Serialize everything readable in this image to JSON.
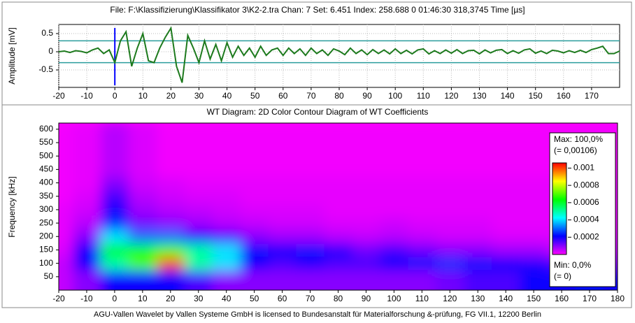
{
  "header": "File: F:\\Klassifizierung\\Klassifikator 3\\K2-2.tra   Chan: 7   Set: 6.451   Index: 258.688    0   01:46:30 318,3745   Time [µs]",
  "footer": "AGU-Vallen Wavelet by Vallen Systeme GmbH is licensed to Bundesanstalt für Materialforschung &-prüfung, FG VII.1, 12200 Berlin",
  "chart_data": [
    {
      "type": "line",
      "y_label": "Amplitude [mV]",
      "color": "#1d7a1d",
      "x": [
        -20,
        -18,
        -16,
        -14,
        -12,
        -10,
        -8,
        -6,
        -4,
        -2,
        0,
        2,
        4,
        6,
        8,
        10,
        12,
        14,
        16,
        18,
        20,
        22,
        24,
        26,
        28,
        30,
        32,
        34,
        36,
        38,
        40,
        42,
        44,
        46,
        48,
        50,
        52,
        54,
        56,
        58,
        60,
        62,
        64,
        66,
        68,
        70,
        72,
        74,
        76,
        78,
        80,
        82,
        84,
        86,
        88,
        90,
        92,
        94,
        96,
        98,
        100,
        102,
        104,
        106,
        108,
        110,
        112,
        114,
        116,
        118,
        120,
        122,
        124,
        126,
        128,
        130,
        132,
        134,
        136,
        138,
        140,
        142,
        144,
        146,
        148,
        150,
        152,
        154,
        156,
        158,
        160,
        162,
        164,
        166,
        168,
        170,
        172,
        174,
        176,
        178,
        180
      ],
      "values": [
        0,
        0.02,
        -0.02,
        0.03,
        0.01,
        -0.03,
        0.05,
        0.1,
        -0.05,
        0.05,
        -0.3,
        0.3,
        0.55,
        -0.4,
        0.1,
        0.5,
        -0.25,
        -0.3,
        0.1,
        0.4,
        0.65,
        -0.4,
        -0.85,
        0.45,
        0.1,
        -0.3,
        0.3,
        -0.2,
        0.2,
        -0.25,
        0.25,
        -0.15,
        0.15,
        -0.1,
        0.1,
        -0.15,
        0.15,
        -0.1,
        0.05,
        0.1,
        -0.1,
        0.1,
        -0.05,
        0.08,
        -0.1,
        0.1,
        -0.05,
        0.05,
        -0.1,
        0.08,
        0.02,
        -0.08,
        0.1,
        -0.05,
        0.05,
        -0.08,
        0.06,
        -0.05,
        0.05,
        -0.06,
        0.08,
        -0.05,
        0.04,
        -0.06,
        0.05,
        0.08,
        -0.06,
        0.03,
        -0.05,
        0.05,
        -0.04,
        0.06,
        -0.05,
        0.03,
        0.04,
        -0.06,
        0.05,
        -0.03,
        0.04,
        0.06,
        -0.05,
        0.03,
        -0.04,
        0.05,
        0.08,
        -0.04,
        0.02,
        -0.05,
        0.04,
        0.02,
        -0.03,
        0.03,
        -0.02,
        0.04,
        -0.02,
        0.06,
        0.1,
        0.15,
        -0.05,
        -0.05,
        0.02
      ],
      "thresholds": [
        0.3,
        -0.3
      ],
      "threshold_color": "#2a9d9d",
      "trigger_x": 0,
      "trigger_color": "#0000ff",
      "xlim": [
        -20,
        180
      ],
      "xticks": [
        -20,
        -10,
        0,
        10,
        20,
        30,
        40,
        50,
        60,
        70,
        80,
        90,
        100,
        110,
        120,
        130,
        140,
        150,
        160,
        170
      ],
      "ylim": [
        -0.98,
        0.75
      ],
      "yticks": [
        -0.5,
        0,
        0.5
      ],
      "grid": true
    },
    {
      "type": "heatmap",
      "title": "WT Diagram: 2D Color Contour Diagram of WT Coefficients",
      "y_label": "Frequency [kHz]",
      "x": [
        -20,
        -10,
        0,
        10,
        20,
        30,
        40,
        50,
        60,
        70,
        80,
        90,
        100,
        110,
        120,
        130,
        140,
        150,
        160,
        170,
        180
      ],
      "y": [
        50,
        100,
        150,
        200,
        250,
        300,
        350,
        400,
        450,
        500,
        550,
        600
      ],
      "z": [
        [
          5e-05,
          0.0001,
          0.0002,
          0.0002,
          0.0002,
          0.00015,
          0.0001,
          0.0001,
          0.0001,
          0.0001,
          0.0001,
          0.0001,
          0.0001,
          0.0001,
          0.00012,
          0.00015,
          0.00015,
          0.0002,
          0.0002,
          0.00022,
          0.0002
        ],
        [
          5e-05,
          0.0002,
          0.0005,
          0.0007,
          0.001,
          0.0005,
          0.0004,
          0.0002,
          0.00015,
          0.00018,
          0.00015,
          0.00015,
          0.0002,
          0.00022,
          0.00025,
          0.00022,
          0.0002,
          0.00018,
          0.00015,
          0.00012,
          0.0001
        ],
        [
          3e-05,
          0.0002,
          0.0006,
          0.0006,
          0.0007,
          0.0005,
          0.0004,
          0.00022,
          0.0002,
          0.00022,
          0.00018,
          0.00012,
          0.00015,
          0.00012,
          0.0001,
          0.0001,
          8e-05,
          8e-05,
          5e-05,
          5e-05,
          5e-05
        ],
        [
          2e-05,
          0.0001,
          0.0004,
          0.0003,
          0.0003,
          0.0002,
          0.00015,
          0.0001,
          8e-05,
          8e-05,
          6e-05,
          5e-05,
          6e-05,
          5e-05,
          4e-05,
          4e-05,
          3e-05,
          3e-05,
          3e-05,
          3e-05,
          3e-05
        ],
        [
          2e-05,
          6e-05,
          0.00025,
          0.00012,
          0.0001,
          8e-05,
          6e-05,
          5e-05,
          4e-05,
          4e-05,
          3e-05,
          3e-05,
          4e-05,
          3e-05,
          3e-05,
          3e-05,
          2e-05,
          2e-05,
          2e-05,
          2e-05,
          2e-05
        ],
        [
          2e-05,
          4e-05,
          0.0002,
          8e-05,
          6e-05,
          5e-05,
          4e-05,
          3e-05,
          3e-05,
          3e-05,
          2e-05,
          2e-05,
          2e-05,
          2e-05,
          2e-05,
          2e-05,
          2e-05,
          2e-05,
          2e-05,
          2e-05,
          2e-05
        ],
        [
          1e-05,
          3e-05,
          0.00015,
          6e-05,
          4e-05,
          3e-05,
          3e-05,
          2e-05,
          2e-05,
          2e-05,
          2e-05,
          2e-05,
          2e-05,
          2e-05,
          2e-05,
          2e-05,
          2e-05,
          2e-05,
          2e-05,
          2e-05,
          2e-05
        ],
        [
          1e-05,
          2e-05,
          0.0001,
          4e-05,
          3e-05,
          2e-05,
          2e-05,
          2e-05,
          2e-05,
          2e-05,
          2e-05,
          2e-05,
          2e-05,
          2e-05,
          2e-05,
          2e-05,
          2e-05,
          2e-05,
          2e-05,
          2e-05,
          2e-05
        ],
        [
          1e-05,
          2e-05,
          6e-05,
          3e-05,
          1e-05,
          1e-05,
          1e-05,
          1e-05,
          1e-05,
          1e-05,
          1e-05,
          1e-05,
          1e-05,
          1e-05,
          1e-05,
          1e-05,
          1e-05,
          1e-05,
          1e-05,
          1e-05,
          1e-05
        ],
        [
          1e-05,
          2e-05,
          6e-05,
          3e-05,
          1e-05,
          1e-05,
          1e-05,
          1e-05,
          1e-05,
          1e-05,
          1e-05,
          1e-05,
          1e-05,
          1e-05,
          1e-05,
          1e-05,
          1e-05,
          1e-05,
          1e-05,
          1e-05,
          1e-05
        ],
        [
          1e-05,
          2e-05,
          6e-05,
          3e-05,
          1e-05,
          1e-05,
          1e-05,
          1e-05,
          1e-05,
          1e-05,
          1e-05,
          1e-05,
          1e-05,
          1e-05,
          1e-05,
          1e-05,
          1e-05,
          1e-05,
          1e-05,
          1e-05,
          1e-05
        ],
        [
          1e-05,
          2e-05,
          6e-05,
          3e-05,
          1e-05,
          1e-05,
          1e-05,
          1e-05,
          1e-05,
          1e-05,
          1e-05,
          1e-05,
          1e-05,
          1e-05,
          1e-05,
          1e-05,
          1e-05,
          1e-05,
          1e-05,
          1e-05,
          1e-05
        ]
      ],
      "colormap": [
        "#ff00ff",
        "#0000ff",
        "#00ffff",
        "#00ff00",
        "#ffff00",
        "#ff0000"
      ],
      "zlim": [
        0,
        0.00106
      ],
      "zticks": [
        0.0002,
        0.0004,
        0.0006,
        0.0008,
        0.001
      ],
      "max_label": "Max: 100,0%",
      "max_value_label": "(= 0,00106)",
      "min_label": "Min: 0,0%",
      "min_value_label": "(= 0)",
      "xlim": [
        -20,
        180
      ],
      "xticks": [
        -20,
        -10,
        0,
        10,
        20,
        30,
        40,
        50,
        60,
        70,
        80,
        90,
        100,
        110,
        120,
        130,
        140,
        150,
        160,
        170,
        180
      ],
      "ylim": [
        0,
        623
      ],
      "yticks": [
        50,
        100,
        150,
        200,
        250,
        300,
        350,
        400,
        450,
        500,
        550,
        600
      ]
    }
  ]
}
